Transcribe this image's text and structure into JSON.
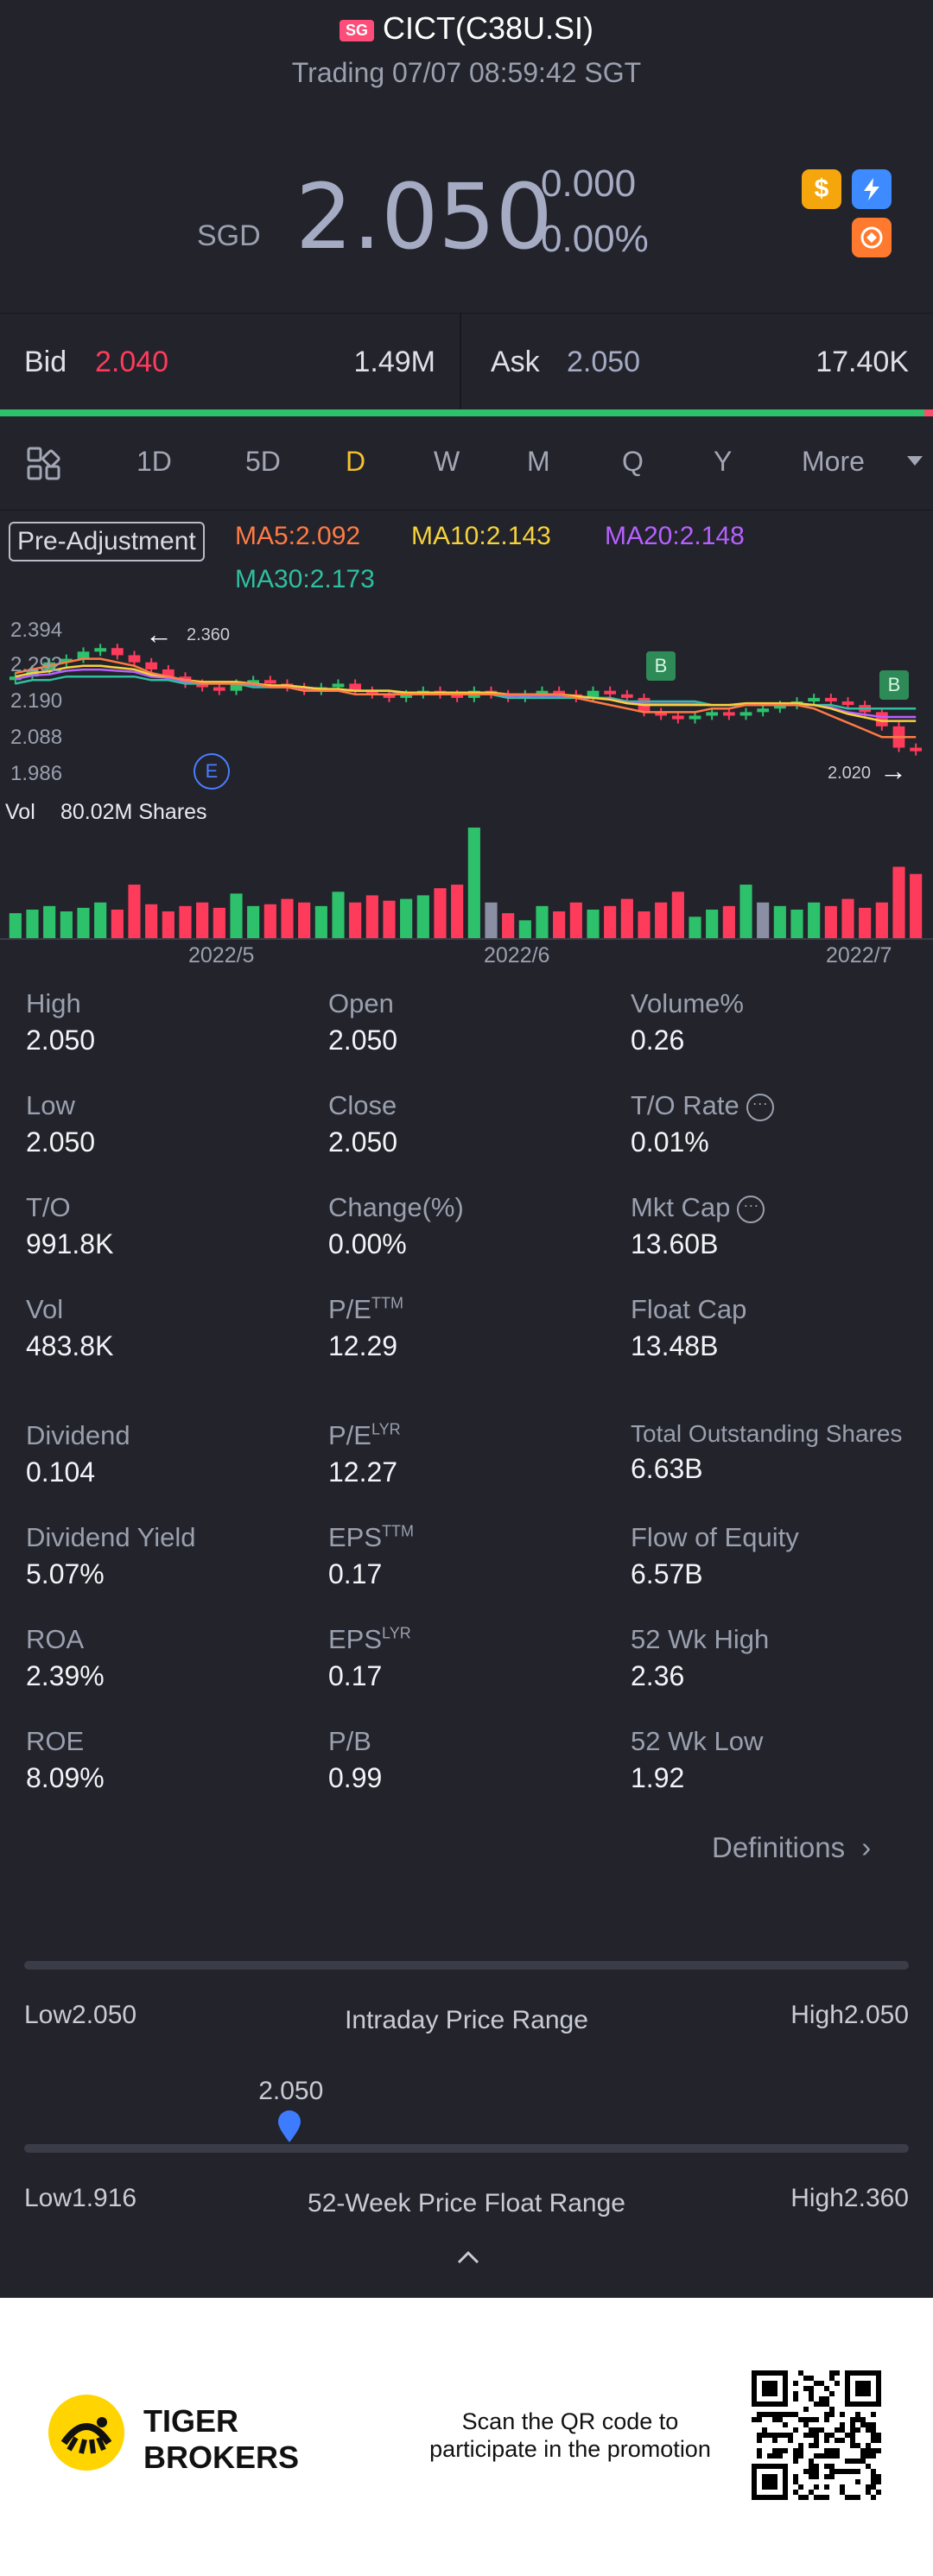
{
  "header": {
    "market_badge": "SG",
    "title": "CICT(C38U.SI)",
    "subtitle": "Trading 07/07 08:59:42 SGT",
    "currency": "SGD",
    "price": "2.050",
    "change": "0.000",
    "change_pct": "0.00%"
  },
  "quote": {
    "bid_label": "Bid",
    "bid_price": "2.040",
    "bid_size": "1.49M",
    "ask_label": "Ask",
    "ask_price": "2.050",
    "ask_size": "17.40K"
  },
  "tabs": [
    "1D",
    "5D",
    "D",
    "W",
    "M",
    "Q",
    "Y",
    "More"
  ],
  "active_tab": "D",
  "indicators": {
    "pre_adjustment": "Pre-Adjustment",
    "ma5": "MA5:2.092",
    "ma10": "MA10:2.143",
    "ma20": "MA20:2.148",
    "ma30": "MA30:2.173"
  },
  "chart_data": {
    "type": "candlestick",
    "y_ticks": [
      "2.394",
      "2.292",
      "2.190",
      "2.088",
      "1.986"
    ],
    "x_ticks": [
      "2022/5",
      "2022/6",
      "2022/7"
    ],
    "annotations": {
      "high_marker": "2.360",
      "low_marker": "2.020",
      "event_E": "E",
      "event_B": "B"
    },
    "volume_label": "Vol",
    "volume_value": "80.02M Shares",
    "closes": [
      2.26,
      2.28,
      2.3,
      2.31,
      2.33,
      2.34,
      2.32,
      2.3,
      2.28,
      2.26,
      2.24,
      2.23,
      2.22,
      2.24,
      2.25,
      2.24,
      2.23,
      2.22,
      2.23,
      2.24,
      2.22,
      2.21,
      2.2,
      2.21,
      2.22,
      2.21,
      2.2,
      2.22,
      2.21,
      2.2,
      2.21,
      2.22,
      2.21,
      2.2,
      2.22,
      2.21,
      2.2,
      2.16,
      2.15,
      2.14,
      2.15,
      2.16,
      2.15,
      2.16,
      2.17,
      2.18,
      2.19,
      2.2,
      2.19,
      2.18,
      2.16,
      2.12,
      2.06,
      2.05
    ],
    "volumes": [
      14,
      16,
      18,
      15,
      17,
      20,
      16,
      30,
      19,
      15,
      18,
      20,
      17,
      25,
      18,
      19,
      22,
      20,
      18,
      26,
      20,
      24,
      21,
      22,
      24,
      28,
      30,
      62,
      20,
      14,
      10,
      18,
      15,
      20,
      16,
      18,
      22,
      15,
      20,
      26,
      12,
      16,
      18,
      30,
      20,
      18,
      16,
      20,
      18,
      22,
      17,
      20,
      40,
      36
    ],
    "ma5": [
      2.27,
      2.28,
      2.29,
      2.3,
      2.31,
      2.31,
      2.3,
      2.29,
      2.27,
      2.26,
      2.25,
      2.24,
      2.24,
      2.24,
      2.24,
      2.23,
      2.23,
      2.22,
      2.22,
      2.22,
      2.21,
      2.21,
      2.21,
      2.21,
      2.21,
      2.21,
      2.21,
      2.21,
      2.21,
      2.21,
      2.21,
      2.21,
      2.21,
      2.2,
      2.19,
      2.18,
      2.17,
      2.16,
      2.16,
      2.16,
      2.16,
      2.17,
      2.17,
      2.18,
      2.18,
      2.18,
      2.18,
      2.17,
      2.15,
      2.13,
      2.11,
      2.09,
      2.09,
      2.09
    ],
    "ma30": [
      2.24,
      2.25,
      2.25,
      2.26,
      2.26,
      2.26,
      2.26,
      2.26,
      2.25,
      2.25,
      2.24,
      2.24,
      2.24,
      2.24,
      2.23,
      2.23,
      2.23,
      2.23,
      2.22,
      2.22,
      2.22,
      2.22,
      2.22,
      2.21,
      2.21,
      2.21,
      2.21,
      2.21,
      2.21,
      2.2,
      2.2,
      2.2,
      2.2,
      2.2,
      2.2,
      2.2,
      2.19,
      2.19,
      2.19,
      2.19,
      2.19,
      2.18,
      2.18,
      2.18,
      2.18,
      2.18,
      2.18,
      2.18,
      2.18,
      2.17,
      2.17,
      2.17,
      2.17,
      2.17
    ]
  },
  "stats": [
    {
      "label": "High",
      "value": "2.050"
    },
    {
      "label": "Open",
      "value": "2.050"
    },
    {
      "label": "Volume%",
      "value": "0.26"
    },
    {
      "label": "Low",
      "value": "2.050"
    },
    {
      "label": "Close",
      "value": "2.050"
    },
    {
      "label": "T/O Rate",
      "value": "0.01%"
    },
    {
      "label": "T/O",
      "value": "991.8K"
    },
    {
      "label": "Change(%)",
      "value": "0.00%"
    },
    {
      "label": "Mkt Cap",
      "value": "13.60B"
    },
    {
      "label": "Vol",
      "value": "483.8K"
    },
    {
      "label": "P/E",
      "sup": "TTM",
      "value": "12.29"
    },
    {
      "label": "Float Cap",
      "value": "13.48B"
    },
    {
      "label": "Dividend",
      "value": "0.104"
    },
    {
      "label": "P/E",
      "sup": "LYR",
      "value": "12.27"
    },
    {
      "label": "Total Outstanding Shares",
      "value": "6.63B"
    },
    {
      "label": "Dividend Yield",
      "value": "5.07%"
    },
    {
      "label": "EPS",
      "sup": "TTM",
      "value": "0.17"
    },
    {
      "label": "Flow of Equity",
      "value": "6.57B"
    },
    {
      "label": "ROA",
      "value": "2.39%"
    },
    {
      "label": "EPS",
      "sup": "LYR",
      "value": "0.17"
    },
    {
      "label": "52 Wk High",
      "value": "2.36"
    },
    {
      "label": "ROE",
      "value": "8.09%"
    },
    {
      "label": "P/B",
      "value": "0.99"
    },
    {
      "label": "52 Wk Low",
      "value": "1.92"
    }
  ],
  "definitions_link": "Definitions",
  "intraday": {
    "low": "Low2.050",
    "label": "Intraday Price Range",
    "high": "High2.050"
  },
  "week52": {
    "marker": "2.050",
    "marker_fraction": 0.3,
    "low": "Low1.916",
    "label": "52-Week Price Float Range",
    "high": "High2.360"
  },
  "footer": {
    "brand_line1": "TIGER",
    "brand_line2": "BROKERS",
    "promo_line1": "Scan the QR code to",
    "promo_line2": "participate in the promotion"
  },
  "colors": {
    "up": "#2ec16b",
    "down": "#ff3b5c",
    "ma5": "#ff7a45",
    "ma10": "#f6d23a",
    "ma20": "#b760ff",
    "ma30": "#2fbfa0",
    "accent": "#f6c12c"
  }
}
